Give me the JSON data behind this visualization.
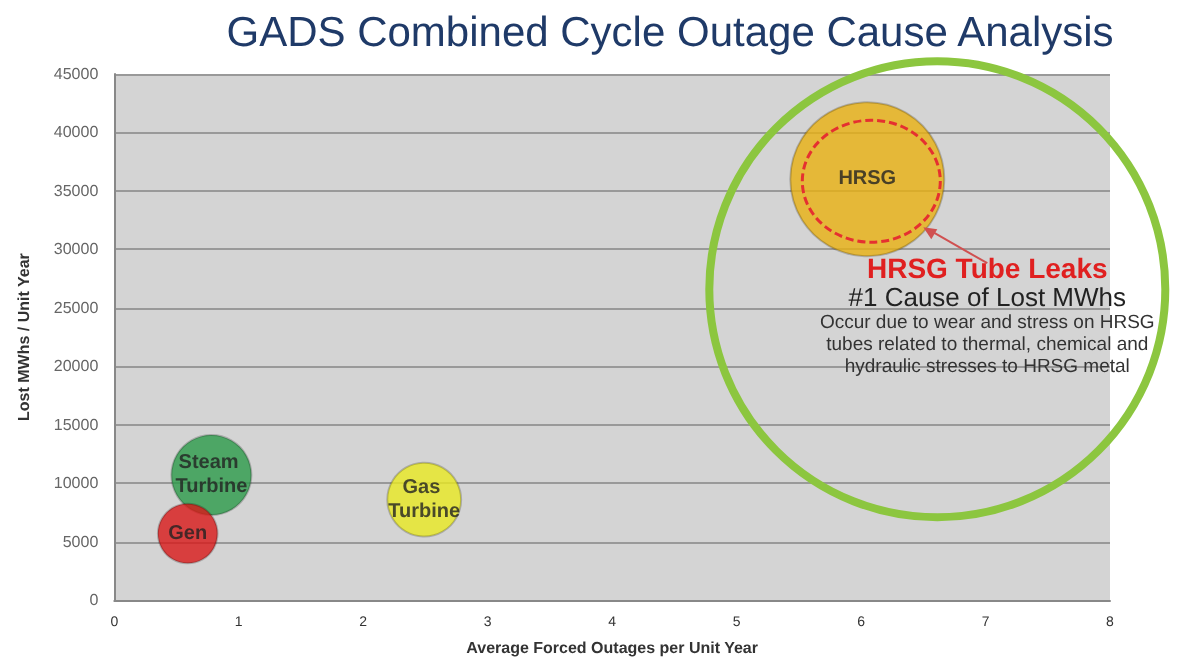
{
  "chart_data": {
    "type": "bubble",
    "title": "GADS Combined Cycle Outage Cause Analysis",
    "xlabel": "Average Forced Outages per Unit Year",
    "ylabel": "Lost MWhs / Unit Year",
    "series": [
      {
        "name": "HRSG",
        "color": "#e8b010",
        "x": [
          6.05
        ],
        "values": [
          36000
        ],
        "sizes": [
          1
        ]
      },
      {
        "name": "Steam Turbine",
        "color": "#2a9a48",
        "x": [
          0.78
        ],
        "values": [
          10700
        ],
        "sizes": [
          0.27
        ]
      },
      {
        "name": "Gen",
        "color": "#d81818",
        "x": [
          0.59
        ],
        "values": [
          5700
        ],
        "sizes": [
          0.15
        ]
      },
      {
        "name": "Gas Turbine",
        "color": "#e8e820",
        "x": [
          2.49
        ],
        "values": [
          8600
        ],
        "sizes": [
          0.23
        ]
      }
    ],
    "annotations": [
      "HRSG  Tube Leaks",
      "#1 Cause of Lost MWhs",
      "Occur due to wear and stress on HRSG tubes related to thermal, chemical and hydraulic stresses to HRSG metal"
    ],
    "xlim": [
      0,
      8
    ],
    "xticks": [
      0,
      1,
      2,
      3,
      4,
      5,
      6,
      7,
      8
    ],
    "ylim": [
      0,
      45000
    ],
    "yticks": [
      0,
      5000,
      10000,
      15000,
      20000,
      25000,
      30000,
      35000,
      40000,
      45000
    ],
    "grid": "y",
    "legend": false
  }
}
